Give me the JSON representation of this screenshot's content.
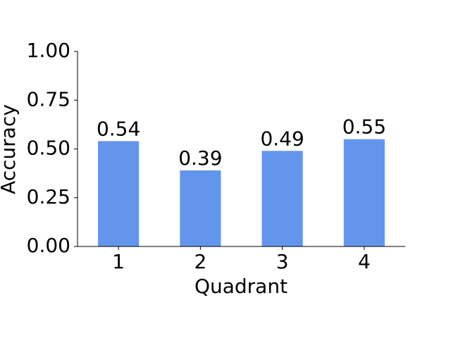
{
  "chart_data": {
    "type": "bar",
    "categories": [
      "1",
      "2",
      "3",
      "4"
    ],
    "values": [
      0.54,
      0.39,
      0.49,
      0.55
    ],
    "color": "#6495ed",
    "xlabel": "Quadrant",
    "ylabel": "Accuracy",
    "ylim": [
      0,
      1
    ],
    "yticks": [
      {
        "value": 0,
        "label": "0.00"
      },
      {
        "value": 0.25,
        "label": "0.25"
      },
      {
        "value": 0.5,
        "label": "0.50"
      },
      {
        "value": 0.75,
        "label": "0.75"
      },
      {
        "value": 1,
        "label": "1.00"
      }
    ]
  }
}
